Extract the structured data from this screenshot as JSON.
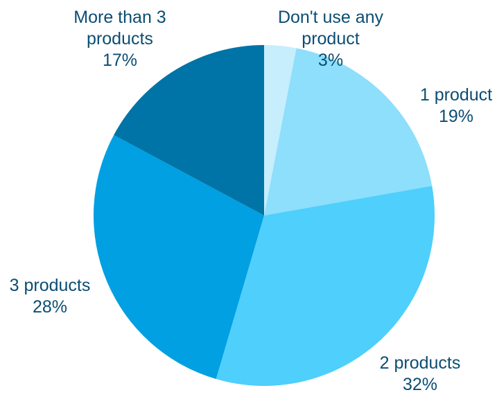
{
  "chart_data": {
    "type": "pie",
    "title": "",
    "start_at_top": true,
    "direction": "clockwise",
    "slices": [
      {
        "label": "Don't use any product",
        "value": 3,
        "display": "3%",
        "color": "#c6eefd",
        "label_lines": [
          "Don't use any",
          "product",
          "3%"
        ]
      },
      {
        "label": "1 product",
        "value": 19,
        "display": "19%",
        "color": "#8ddffb",
        "label_lines": [
          "1 product",
          "19%"
        ]
      },
      {
        "label": "2 products",
        "value": 32,
        "display": "32%",
        "color": "#4fcffb",
        "label_lines": [
          "2 products",
          "32%"
        ]
      },
      {
        "label": "3 products",
        "value": 28,
        "display": "28%",
        "color": "#00a0e2",
        "label_lines": [
          "3 products",
          "28%"
        ]
      },
      {
        "label": "More than 3 products",
        "value": 17,
        "display": "17%",
        "color": "#0074a6",
        "label_lines": [
          "More than 3",
          "products",
          "17%"
        ]
      }
    ],
    "label_color": "#0b4d73"
  }
}
